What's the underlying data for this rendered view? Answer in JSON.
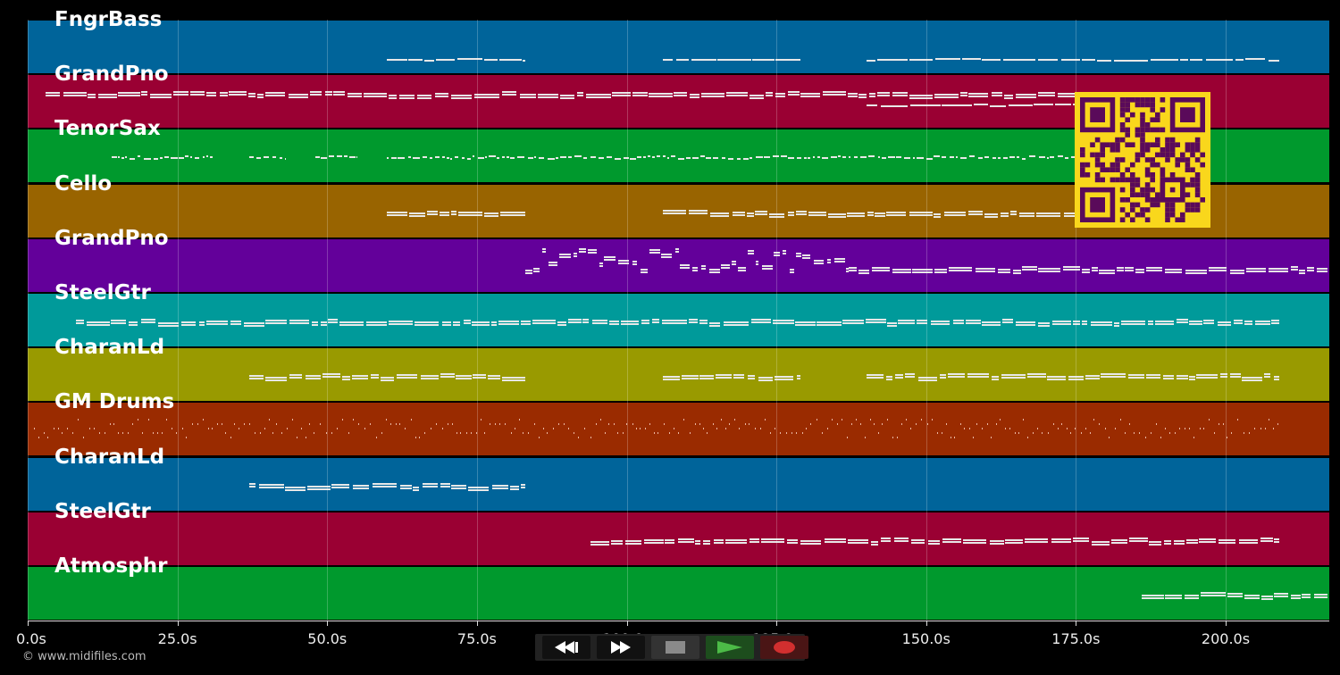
{
  "tracks": [
    {
      "name": "FngrBass",
      "color": "#00649a"
    },
    {
      "name": "GrandPno",
      "color": "#9a0033"
    },
    {
      "name": "TenorSax",
      "color": "#00992d"
    },
    {
      "name": "Cello",
      "color": "#996400"
    },
    {
      "name": "GrandPno",
      "color": "#63009a"
    },
    {
      "name": "SteelGtr",
      "color": "#009a9a"
    },
    {
      "name": "CharanLd",
      "color": "#999a00"
    },
    {
      "name": "GM Drums",
      "color": "#9a2b00"
    },
    {
      "name": "CharanLd",
      "color": "#00649a"
    },
    {
      "name": "SteelGtr",
      "color": "#9a0033"
    },
    {
      "name": "Atmosphr",
      "color": "#00992d"
    }
  ],
  "timeline": {
    "ticks": [
      {
        "seconds": 0,
        "label": "0.0s"
      },
      {
        "seconds": 25,
        "label": "25.0s"
      },
      {
        "seconds": 50,
        "label": "50.0s"
      },
      {
        "seconds": 75,
        "label": "75.0s"
      },
      {
        "seconds": 100,
        "label": "100.0s"
      },
      {
        "seconds": 125,
        "label": "125.0s"
      },
      {
        "seconds": 150,
        "label": "150.0s"
      },
      {
        "seconds": 175,
        "label": "175.0s"
      },
      {
        "seconds": 200,
        "label": "200.0s"
      }
    ],
    "max_seconds": 217.5
  },
  "note_spans": [
    {
      "track": 0,
      "from": 60,
      "to": 83,
      "style": "sparse"
    },
    {
      "track": 0,
      "from": 106,
      "to": 129,
      "style": "sparse"
    },
    {
      "track": 0,
      "from": 140,
      "to": 209,
      "style": "sparse"
    },
    {
      "track": 1,
      "from": 3,
      "to": 186,
      "style": "dense"
    },
    {
      "track": 1,
      "from": 140,
      "to": 175,
      "style": "sparse"
    },
    {
      "track": 2,
      "from": 14,
      "to": 31,
      "style": "dotted"
    },
    {
      "track": 2,
      "from": 37,
      "to": 43,
      "style": "dotted"
    },
    {
      "track": 2,
      "from": 48,
      "to": 55,
      "style": "dotted"
    },
    {
      "track": 2,
      "from": 60,
      "to": 175,
      "style": "dotted"
    },
    {
      "track": 3,
      "from": 60,
      "to": 83,
      "style": "dense"
    },
    {
      "track": 3,
      "from": 106,
      "to": 175,
      "style": "dense"
    },
    {
      "track": 4,
      "from": 83,
      "to": 137,
      "style": "chords"
    },
    {
      "track": 4,
      "from": 137,
      "to": 217,
      "style": "dense"
    },
    {
      "track": 5,
      "from": 8,
      "to": 209,
      "style": "dense"
    },
    {
      "track": 6,
      "from": 37,
      "to": 83,
      "style": "dense"
    },
    {
      "track": 6,
      "from": 106,
      "to": 129,
      "style": "dense"
    },
    {
      "track": 6,
      "from": 140,
      "to": 209,
      "style": "dense"
    },
    {
      "track": 7,
      "from": 1,
      "to": 209,
      "style": "drums"
    },
    {
      "track": 8,
      "from": 37,
      "to": 83,
      "style": "dense"
    },
    {
      "track": 9,
      "from": 94,
      "to": 209,
      "style": "dense"
    },
    {
      "track": 10,
      "from": 186,
      "to": 217,
      "style": "dense"
    }
  ],
  "transport": {
    "rewind_icon": "rewind-icon",
    "fast_forward_icon": "fast-forward-icon",
    "stop_icon": "stop-icon",
    "play_icon": "play-icon",
    "record_icon": "record-icon",
    "play_color": "#4cbb47",
    "record_color": "#d12f2f"
  },
  "copyright": "© www.midifiles.com",
  "overlay": {
    "icon": "qr-code-icon",
    "color": "#f9d71c",
    "ink": "#5a0a5a"
  }
}
